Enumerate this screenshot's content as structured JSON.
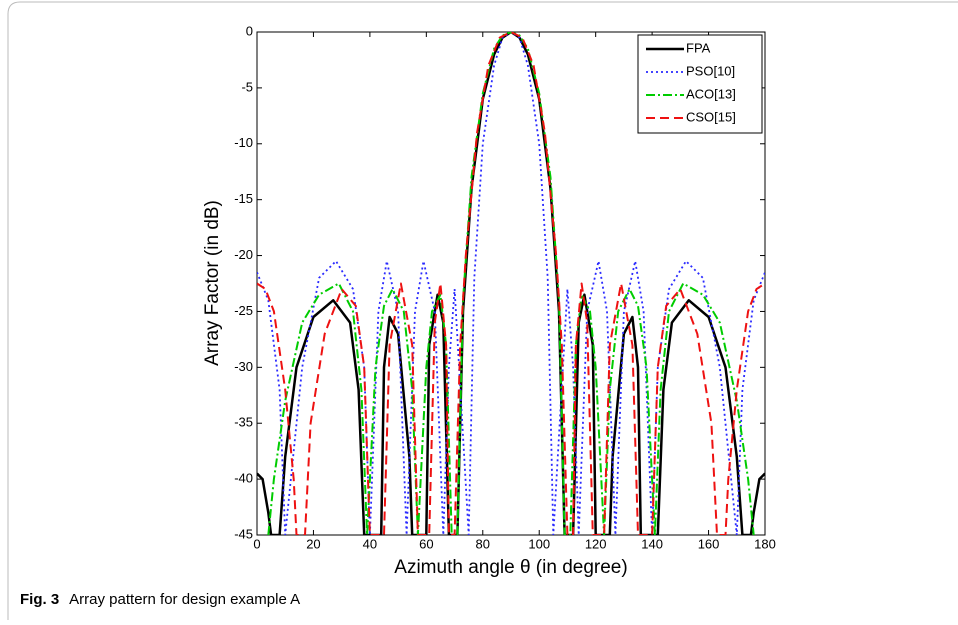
{
  "chart_data": {
    "type": "line",
    "xlabel": "Azimuth angle θ (in degree)",
    "ylabel": "Array Factor (in dB)",
    "xlim": [
      0,
      180
    ],
    "ylim": [
      -45,
      0
    ],
    "xticks": [
      0,
      20,
      40,
      60,
      80,
      100,
      120,
      140,
      160,
      180
    ],
    "yticks": [
      0,
      -5,
      -10,
      -15,
      -20,
      -25,
      -30,
      -35,
      -40,
      -45
    ],
    "legend": "upper right",
    "series": [
      {
        "name": "FPA",
        "color": "#000000",
        "dash": "solid",
        "linewidth": 2.5,
        "x": [
          0,
          2,
          4,
          5,
          8,
          10,
          14,
          20,
          27,
          33,
          36,
          38,
          44,
          45,
          47,
          50,
          54,
          55,
          60,
          61,
          64,
          66,
          68,
          71,
          73,
          76,
          80,
          84,
          87,
          90,
          93,
          96,
          100,
          104,
          107,
          109,
          112,
          114,
          116,
          119,
          120,
          125,
          126,
          130,
          133,
          135,
          136,
          142,
          144,
          147,
          153,
          160,
          166,
          170,
          172,
          175,
          176,
          178,
          180
        ],
        "values": [
          -39.5,
          -40,
          -43,
          -45,
          -45,
          -38,
          -30,
          -25.5,
          -24,
          -26,
          -32,
          -45,
          -45,
          -30,
          -25.5,
          -27,
          -38,
          -45,
          -45,
          -28,
          -23.5,
          -26,
          -45,
          -45,
          -25,
          -14,
          -6,
          -2,
          -0.5,
          0,
          -0.5,
          -2,
          -6,
          -14,
          -25,
          -45,
          -45,
          -26,
          -23.5,
          -28,
          -45,
          -45,
          -38,
          -27,
          -25.5,
          -30,
          -45,
          -45,
          -32,
          -26,
          -24,
          -25.5,
          -30,
          -38,
          -45,
          -45,
          -43,
          -40,
          -39.5
        ]
      },
      {
        "name": "PSO[10]",
        "color": "#2a2aff",
        "dash": "dotted",
        "linewidth": 1.8,
        "x": [
          0,
          4,
          8,
          10,
          16,
          22,
          28,
          34,
          38,
          40,
          43,
          46,
          50,
          53,
          56,
          59,
          63,
          66,
          68,
          70,
          75,
          77,
          80,
          84,
          87,
          90,
          93,
          96,
          100,
          103,
          105,
          110,
          112,
          114,
          117,
          121,
          124,
          127,
          130,
          134,
          137,
          140,
          142,
          146,
          152,
          158,
          164,
          170,
          172,
          176,
          180
        ],
        "values": [
          -21.5,
          -24,
          -32,
          -45,
          -30,
          -22,
          -20.5,
          -23,
          -30,
          -45,
          -25,
          -20.5,
          -25,
          -45,
          -25,
          -20.5,
          -25,
          -45,
          -30,
          -23,
          -45,
          -22,
          -10,
          -3,
          -0.5,
          0,
          -0.5,
          -3,
          -10,
          -22,
          -45,
          -23,
          -30,
          -45,
          -25,
          -20.5,
          -25,
          -45,
          -25,
          -20.5,
          -25,
          -45,
          -30,
          -23,
          -20.5,
          -22,
          -30,
          -45,
          -32,
          -24,
          -21.5
        ]
      },
      {
        "name": "ACO[13]",
        "color": "#00cc00",
        "dash": "dashdot",
        "linewidth": 2,
        "x": [
          4,
          6,
          10,
          16,
          22,
          29,
          34,
          37,
          39,
          42,
          45,
          48,
          52,
          55,
          57,
          60,
          62,
          65,
          67,
          69,
          71,
          73,
          76,
          80,
          84,
          87,
          90,
          93,
          96,
          100,
          104,
          107,
          109,
          111,
          113,
          115,
          118,
          120,
          123,
          125,
          128,
          132,
          135,
          138,
          141,
          143,
          146,
          151,
          158,
          164,
          170,
          174,
          176
        ],
        "values": [
          -45,
          -40,
          -33,
          -26,
          -23.5,
          -22.5,
          -25,
          -32,
          -45,
          -30,
          -24.5,
          -23,
          -25,
          -32,
          -45,
          -30,
          -25,
          -23.5,
          -28,
          -45,
          -45,
          -24,
          -13,
          -5.5,
          -1.5,
          -0.3,
          0,
          -0.3,
          -1.5,
          -5.5,
          -13,
          -24,
          -45,
          -45,
          -28,
          -23.5,
          -25,
          -30,
          -45,
          -32,
          -25,
          -23,
          -24.5,
          -30,
          -45,
          -32,
          -25,
          -22.5,
          -23.5,
          -26,
          -33,
          -40,
          -45
        ]
      },
      {
        "name": "CSO[15]",
        "color": "#ee1111",
        "dash": "dashed",
        "linewidth": 2,
        "x": [
          0,
          3,
          6,
          10,
          13,
          14,
          17,
          19,
          24,
          30,
          35,
          38,
          40,
          45,
          47,
          51,
          55,
          57,
          61,
          63,
          65,
          67,
          68,
          70,
          72,
          74,
          78,
          82,
          86,
          90,
          94,
          98,
          102,
          106,
          108,
          110,
          112,
          113,
          115,
          117,
          119,
          123,
          125,
          129,
          133,
          135,
          140,
          142,
          145,
          150,
          156,
          161,
          163,
          166,
          167,
          170,
          174,
          177,
          180
        ],
        "values": [
          -22.5,
          -23,
          -25,
          -32,
          -40,
          -45,
          -45,
          -35,
          -27,
          -23,
          -24.5,
          -30,
          -45,
          -45,
          -28,
          -22.5,
          -28,
          -45,
          -45,
          -26,
          -22.5,
          -28,
          -45,
          -45,
          -28,
          -20,
          -9,
          -3,
          -0.5,
          0,
          -0.5,
          -3,
          -9,
          -20,
          -28,
          -45,
          -45,
          -28,
          -22.5,
          -26,
          -45,
          -45,
          -28,
          -22.5,
          -28,
          -45,
          -45,
          -30,
          -24.5,
          -23,
          -27,
          -35,
          -45,
          -45,
          -40,
          -32,
          -25,
          -23,
          -22.5
        ]
      }
    ]
  },
  "caption": {
    "label": "Fig. 3",
    "text": "Array pattern for design example A"
  }
}
